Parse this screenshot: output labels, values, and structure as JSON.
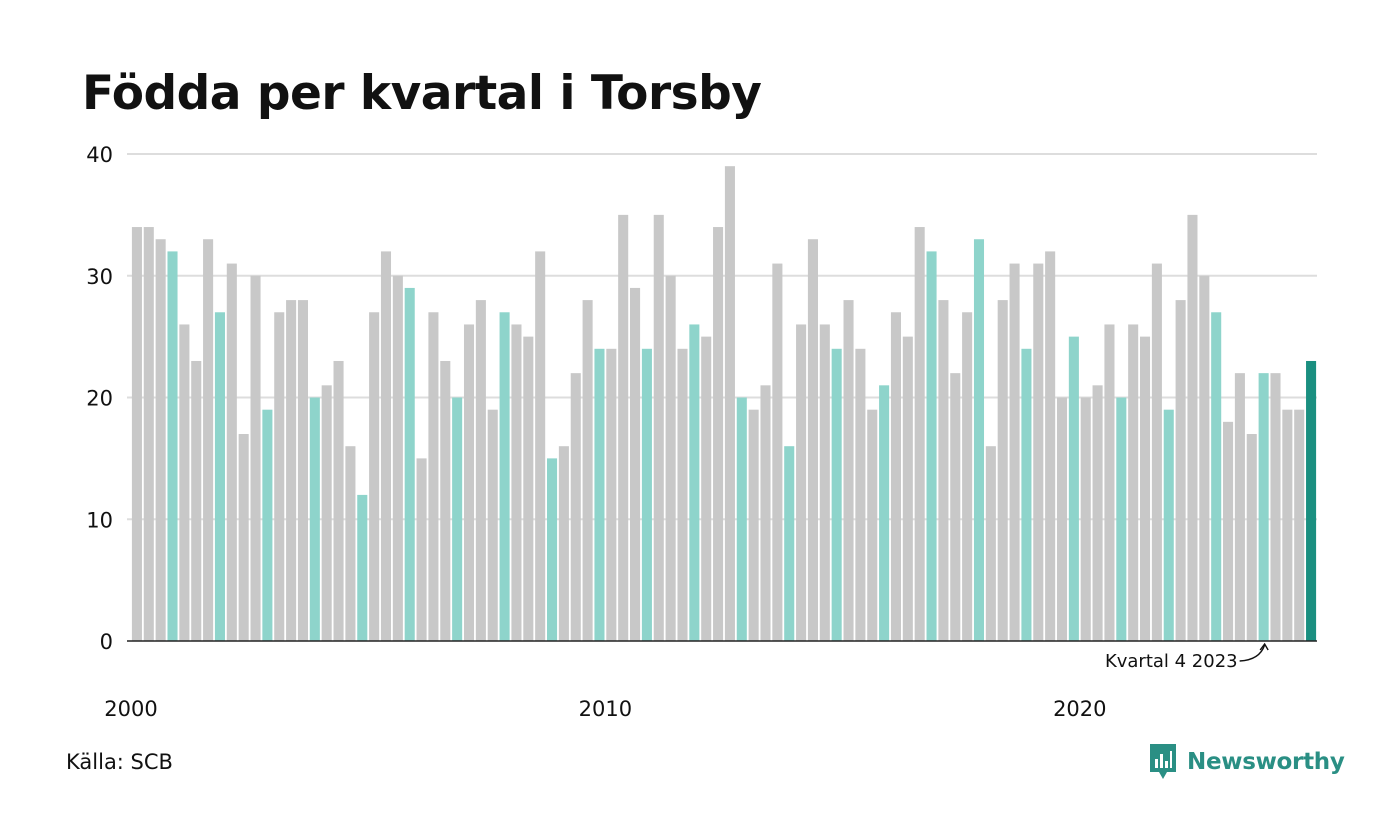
{
  "title": "Födda per kvartal i Torsby",
  "source": "Källa: SCB",
  "brand": {
    "name": "Newsworthy",
    "icon": "newsworthy-logo-icon"
  },
  "colors": {
    "bar_default": "#c8c8c8",
    "bar_q4": "#8ed4cb",
    "bar_latest": "#1a8f80",
    "gridline": "#dddddd",
    "baseline": "#222222",
    "brand": "#2a8f84"
  },
  "chart_data": {
    "type": "bar",
    "title": "Födda per kvartal i Torsby",
    "xlabel": "",
    "ylabel": "",
    "ylim": [
      0,
      40
    ],
    "y_ticks": [
      0,
      10,
      20,
      30,
      40
    ],
    "x_tick_labels": [
      "2000",
      "2010",
      "2020"
    ],
    "grid": true,
    "annotation": "Kvartal 4 2023",
    "start": "2000 Q1",
    "end": "2024 Q4",
    "highlighted_quarter": 4,
    "values": [
      34,
      34,
      33,
      32,
      26,
      23,
      33,
      27,
      31,
      17,
      30,
      19,
      27,
      28,
      28,
      20,
      21,
      23,
      16,
      12,
      27,
      32,
      30,
      29,
      15,
      27,
      23,
      20,
      26,
      28,
      19,
      27,
      26,
      25,
      32,
      15,
      16,
      22,
      28,
      24,
      24,
      35,
      29,
      24,
      35,
      30,
      24,
      26,
      25,
      34,
      39,
      20,
      19,
      21,
      31,
      16,
      26,
      33,
      26,
      24,
      28,
      24,
      19,
      21,
      27,
      25,
      34,
      32,
      28,
      22,
      27,
      33,
      16,
      28,
      31,
      24,
      31,
      32,
      20,
      25,
      20,
      21,
      26,
      20,
      26,
      25,
      31,
      19,
      28,
      35,
      30,
      27,
      18,
      22,
      17,
      22,
      22,
      19,
      19,
      23
    ]
  }
}
